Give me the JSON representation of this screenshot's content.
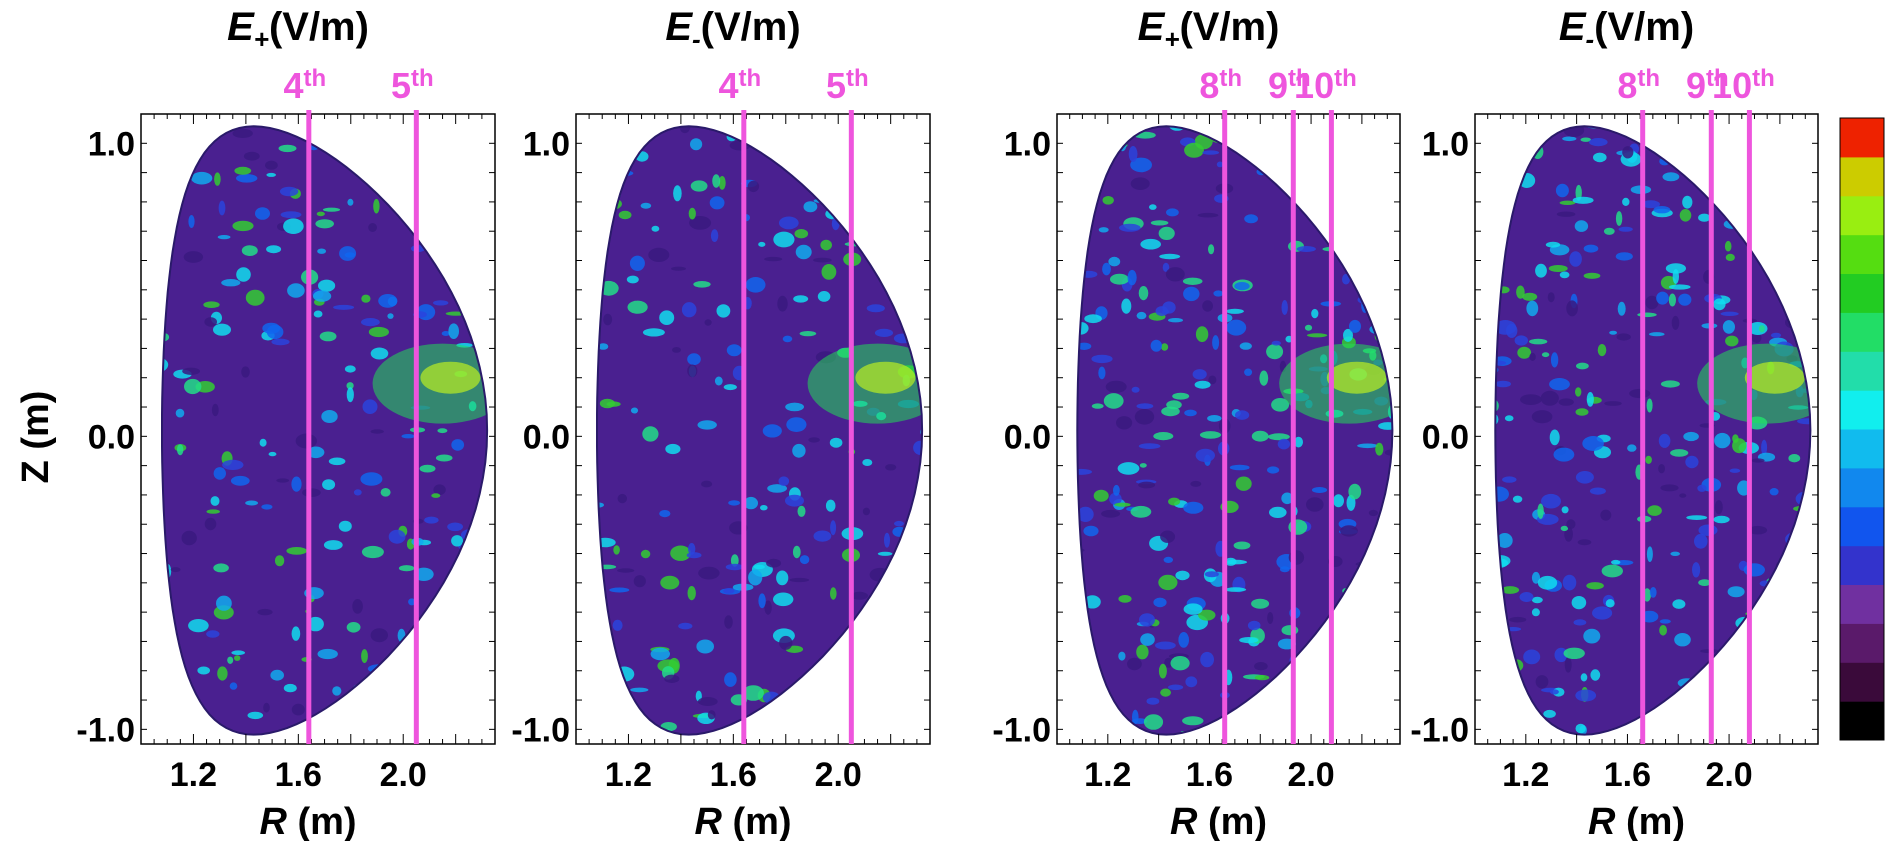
{
  "chart_data": {
    "type": "heatmap",
    "xlabel": "R (m)",
    "ylabel": "Z (m)",
    "xlim": [
      1.0,
      2.35
    ],
    "ylim": [
      -1.05,
      1.1
    ],
    "x_ticks": [
      "1.2",
      "1.6",
      "2.0"
    ],
    "x_tick_values": [
      1.2,
      1.6,
      2.0
    ],
    "y_ticks": [
      "1.0",
      "0.0",
      "-1.0"
    ],
    "y_tick_values": [
      1.0,
      0.0,
      -1.0
    ],
    "harmonic_line_color": "#ee55dd",
    "colorbar": {
      "colors": [
        "#000000",
        "#3a0a3a",
        "#5a1a6a",
        "#7030a0",
        "#3333cc",
        "#1155ee",
        "#1188ee",
        "#11bbee",
        "#11eeee",
        "#22ddaa",
        "#22dd66",
        "#22cc22",
        "#55dd11",
        "#99ee11",
        "#cccc00",
        "#ee2200"
      ]
    },
    "panels": [
      {
        "title_main": "E",
        "title_sub": "+",
        "title_unit": "(V/m)",
        "harmonics": [
          {
            "label": "4",
            "sup": "th",
            "r": 1.64
          },
          {
            "label": "5",
            "sup": "th",
            "r": 2.05
          }
        ]
      },
      {
        "title_main": "E",
        "title_sub": "-",
        "title_unit": "(V/m)",
        "harmonics": [
          {
            "label": "4",
            "sup": "th",
            "r": 1.64
          },
          {
            "label": "5",
            "sup": "th",
            "r": 2.05
          }
        ]
      },
      {
        "title_main": "E",
        "title_sub": "+",
        "title_unit": "(V/m)",
        "harmonics": [
          {
            "label": "8",
            "sup": "th",
            "r": 1.66
          },
          {
            "label": "9",
            "sup": "th",
            "r": 1.93
          },
          {
            "label": "10",
            "sup": "th",
            "r": 2.08
          }
        ]
      },
      {
        "title_main": "E",
        "title_sub": "-",
        "title_unit": "(V/m)",
        "harmonics": [
          {
            "label": "8",
            "sup": "th",
            "r": 1.66
          },
          {
            "label": "9",
            "sup": "th",
            "r": 1.93
          },
          {
            "label": "10",
            "sup": "th",
            "r": 2.08
          }
        ]
      }
    ]
  }
}
